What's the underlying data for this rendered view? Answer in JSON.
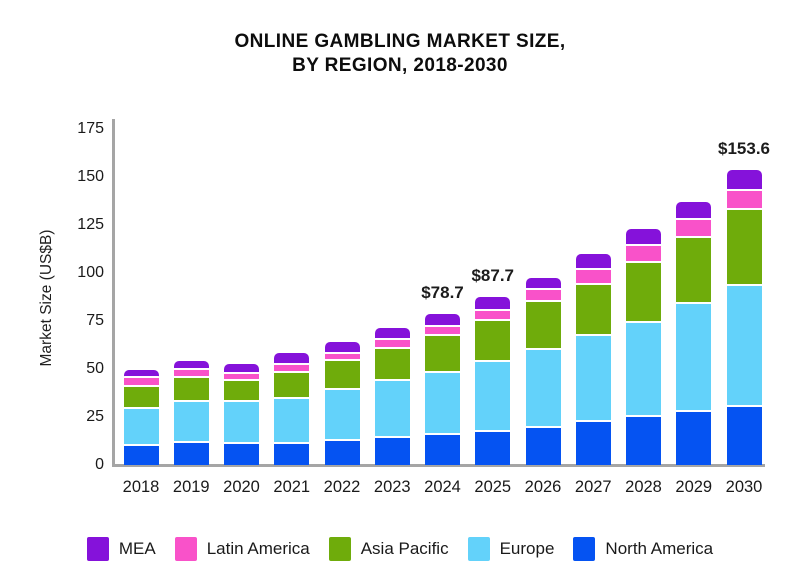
{
  "title": {
    "line1": "ONLINE GAMBLING MARKET SIZE,",
    "line2": "BY REGION, 2018-2030"
  },
  "chart_data": {
    "type": "bar",
    "stacked": true,
    "title": "ONLINE GAMBLING MARKET SIZE, BY REGION, 2018-2030",
    "xlabel": "",
    "ylabel": "Market Size (US$B)",
    "ylim": [
      0,
      175
    ],
    "yticks": [
      0,
      25,
      50,
      75,
      100,
      125,
      150,
      175
    ],
    "grid": false,
    "legend_position": "bottom",
    "categories": [
      "2018",
      "2019",
      "2020",
      "2021",
      "2022",
      "2023",
      "2024",
      "2025",
      "2026",
      "2027",
      "2028",
      "2029",
      "2030"
    ],
    "series": [
      {
        "name": "North America",
        "color": "#0553F2",
        "values": [
          11.0,
          12.4,
          12.1,
          11.8,
          13.6,
          15.2,
          16.8,
          18.1,
          20.3,
          23.3,
          25.9,
          28.4,
          31.1
        ]
      },
      {
        "name": "Europe",
        "color": "#63D2FA",
        "values": [
          19.3,
          21.3,
          21.5,
          23.8,
          26.6,
          29.5,
          31.9,
          36.4,
          40.7,
          44.7,
          49.2,
          56.7,
          63.3
        ]
      },
      {
        "name": "Asia Pacific",
        "color": "#6FAC0B",
        "values": [
          11.5,
          12.6,
          11.3,
          13.6,
          15.1,
          16.6,
          19.5,
          21.4,
          24.9,
          26.6,
          31.2,
          34.3,
          39.2
        ]
      },
      {
        "name": "Latin America",
        "color": "#F952C9",
        "values": [
          4.3,
          4.2,
          3.6,
          3.9,
          3.6,
          4.7,
          4.7,
          5.6,
          6.5,
          8.2,
          9.0,
          9.4,
          10.4
        ]
      },
      {
        "name": "MEA",
        "color": "#8512DA",
        "values": [
          3.4,
          3.9,
          4.2,
          5.4,
          5.2,
          5.4,
          5.8,
          6.2,
          5.2,
          6.9,
          7.4,
          8.2,
          9.6
        ]
      }
    ],
    "totals": [
      49.5,
      54.4,
      52.7,
      58.5,
      64.1,
      71.4,
      78.7,
      87.7,
      97.6,
      109.7,
      122.7,
      137.0,
      153.6
    ],
    "annotations": {
      "2024": "$78.7",
      "2025": "$87.7",
      "2030": "$153.6"
    }
  },
  "legend": {
    "items": [
      {
        "label": "MEA",
        "color": "#8512DA"
      },
      {
        "label": "Latin America",
        "color": "#F952C9"
      },
      {
        "label": "Asia Pacific",
        "color": "#6FAC0B"
      },
      {
        "label": "Europe",
        "color": "#63D2FA"
      },
      {
        "label": "North America",
        "color": "#0553F2"
      }
    ]
  }
}
